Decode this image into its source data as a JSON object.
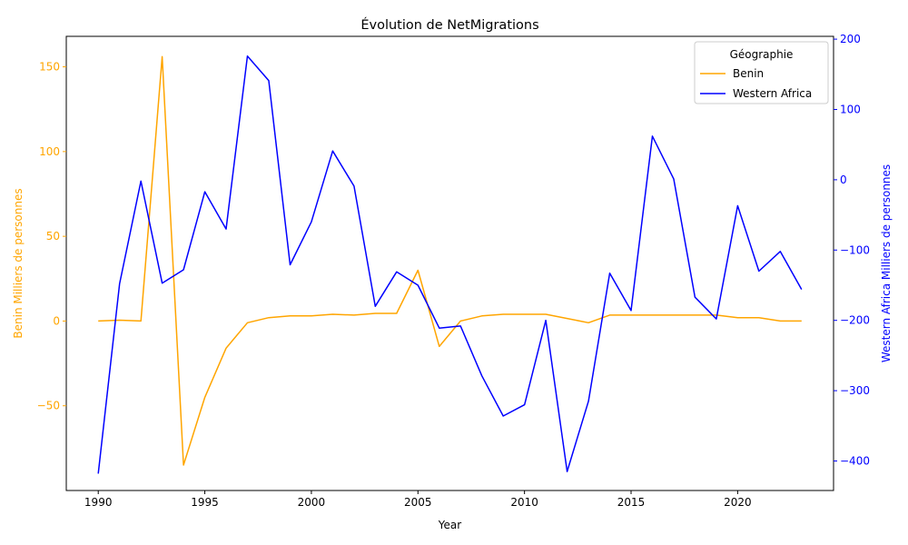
{
  "chart_data": {
    "type": "line",
    "title": "Évolution de NetMigrations",
    "xlabel": "Year",
    "ylabel_left": "Benin Milliers de personnes",
    "ylabel_right": "Western Africa Milliers de personnes",
    "xlim": [
      1988.5,
      2024.5
    ],
    "ylim_left": [
      -100,
      168
    ],
    "ylim_right": [
      -442,
      204
    ],
    "xticks": [
      1990,
      1995,
      2000,
      2005,
      2010,
      2015,
      2020
    ],
    "yticks_left": [
      -50,
      0,
      50,
      100,
      150
    ],
    "yticks_right": [
      -400,
      -300,
      -200,
      -100,
      0,
      100,
      200
    ],
    "legend": {
      "title": "Géographie",
      "placement": "top-right"
    },
    "x": [
      1990,
      1991,
      1992,
      1993,
      1994,
      1995,
      1996,
      1997,
      1998,
      1999,
      2000,
      2001,
      2002,
      2003,
      2004,
      2005,
      2006,
      2007,
      2008,
      2009,
      2010,
      2011,
      2012,
      2013,
      2014,
      2015,
      2016,
      2017,
      2018,
      2019,
      2020,
      2021,
      2022,
      2023
    ],
    "series": [
      {
        "name": "Benin",
        "axis": "left",
        "color": "#ffa500",
        "values": [
          0,
          0.5,
          0,
          156,
          -85,
          -45,
          -16,
          -1,
          2,
          3,
          3,
          4,
          3.5,
          4.5,
          4.5,
          30,
          -15,
          0,
          3,
          4,
          4,
          4,
          1.5,
          -1,
          3.5,
          3.5,
          3.5,
          3.5,
          3.5,
          3.5,
          2,
          2,
          0,
          0
        ]
      },
      {
        "name": "Western Africa",
        "axis": "right",
        "color": "#0000ff",
        "values": [
          -418,
          -148,
          -2,
          -147,
          -128,
          -17,
          -70,
          176,
          141,
          -121,
          -60,
          41,
          -9,
          -180,
          -131,
          -150,
          -211,
          -208,
          -279,
          -336,
          -320,
          -200,
          -415,
          -315,
          -133,
          -186,
          62,
          1,
          -167,
          -198,
          -37,
          -130,
          -102,
          -156
        ]
      }
    ]
  }
}
